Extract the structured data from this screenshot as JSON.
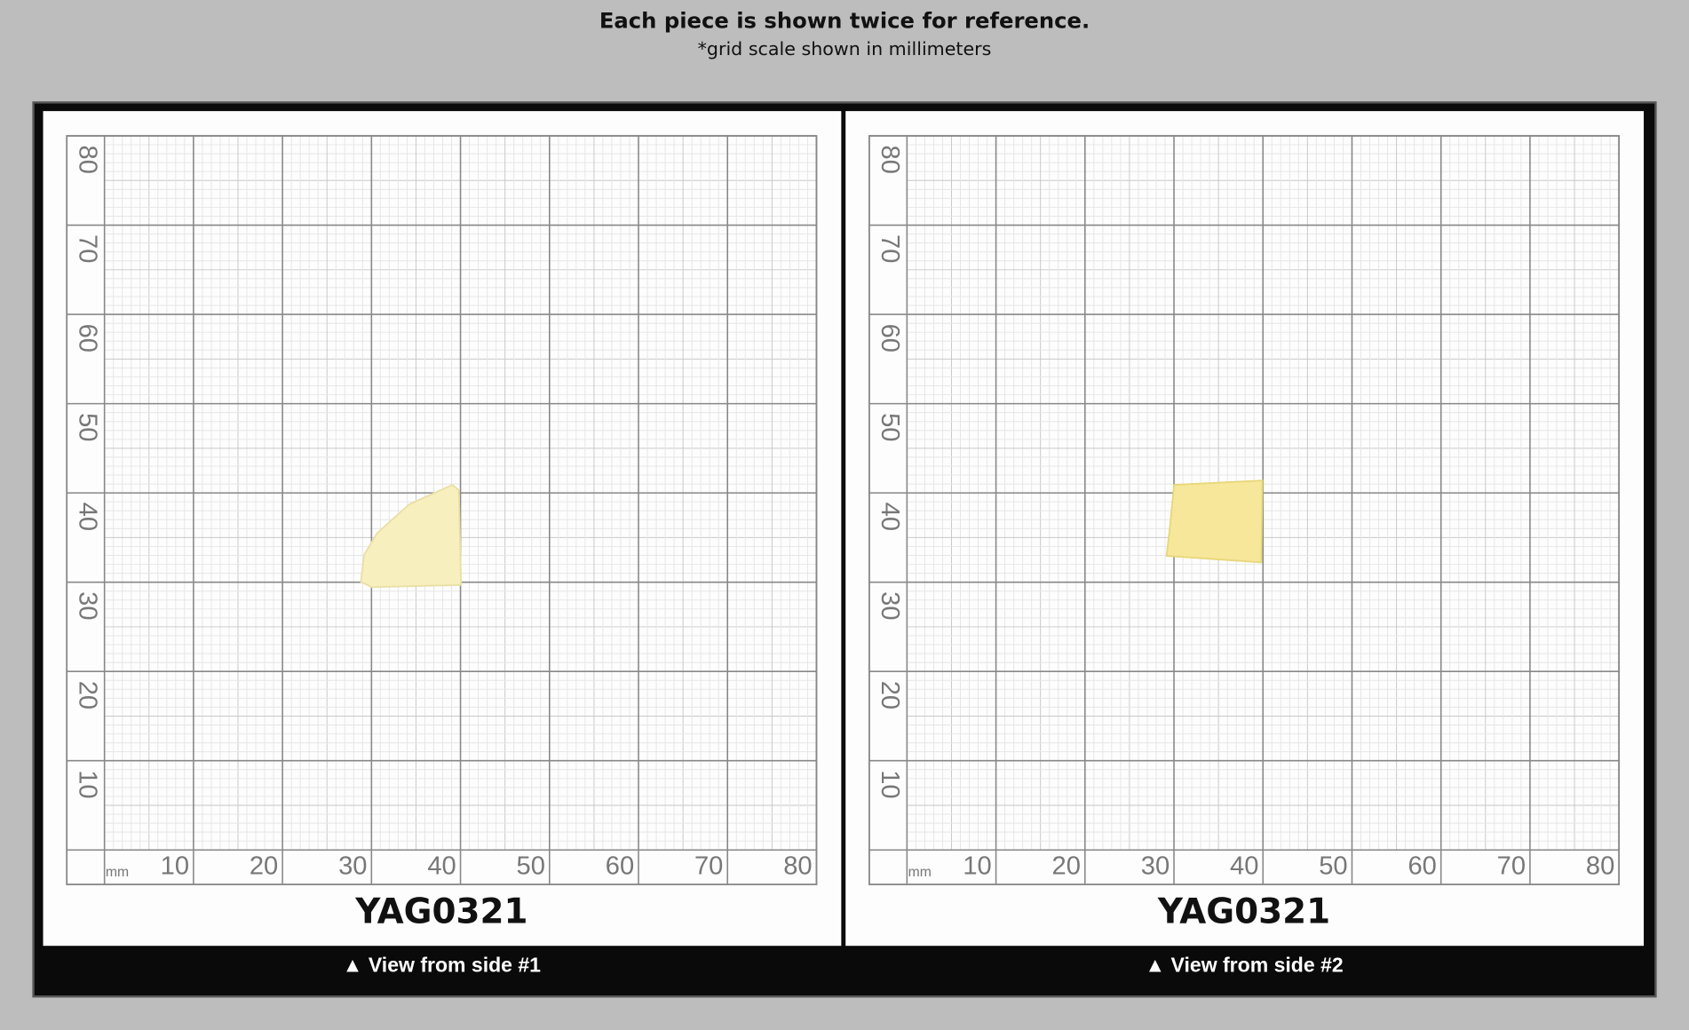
{
  "header": {
    "title": "Each piece is shown twice for reference.",
    "subtitle": "*grid scale shown in millimeters"
  },
  "grid": {
    "x_labels": [
      "10",
      "20",
      "30",
      "40",
      "50",
      "60",
      "70",
      "80"
    ],
    "y_labels": [
      "80",
      "70",
      "60",
      "50",
      "40",
      "30",
      "20",
      "10"
    ],
    "unit": "mm"
  },
  "panels": [
    {
      "label": "YAG0321",
      "caption": "▲ View from side #1"
    },
    {
      "label": "YAG0321",
      "caption": "▲ View from side #2"
    }
  ]
}
